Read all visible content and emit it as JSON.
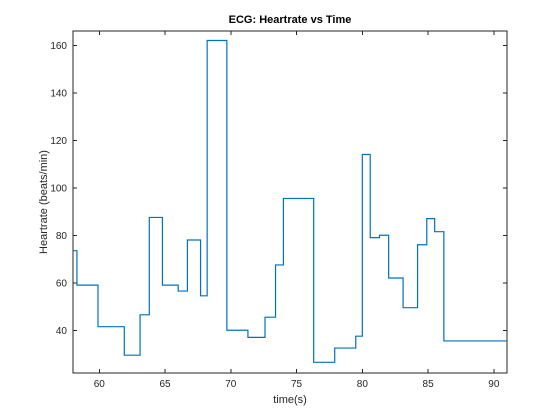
{
  "chart_data": {
    "type": "line",
    "step": true,
    "title": "ECG: Heartrate vs Time",
    "xlabel": "time(s)",
    "ylabel": "Heartrate (beats/min)",
    "xlim": [
      58,
      91
    ],
    "ylim": [
      22,
      166
    ],
    "xticks": [
      60,
      65,
      70,
      75,
      80,
      85,
      90
    ],
    "yticks": [
      40,
      60,
      80,
      100,
      120,
      140,
      160
    ],
    "grid": false,
    "box": true,
    "line_color": "#0072BD",
    "series": [
      {
        "x": [
          58.0,
          58.3,
          59.9,
          61.9,
          63.1,
          63.8,
          64.8,
          66.0,
          66.7,
          67.7,
          68.2,
          69.7,
          71.3,
          72.6,
          73.4,
          74.0,
          76.3,
          77.9,
          79.5,
          80.0,
          80.6,
          81.3,
          82.0,
          83.1,
          84.2,
          84.9,
          85.5,
          86.2,
          88.0,
          91.0
        ],
        "y": [
          73.5,
          59,
          41.5,
          29.5,
          46.5,
          87.5,
          59,
          56.5,
          78,
          54.5,
          162,
          40,
          37,
          45.5,
          67.5,
          95.5,
          26.5,
          32.5,
          37.5,
          114,
          79,
          80,
          62,
          49.5,
          76,
          87,
          81.5,
          35.5,
          35.5,
          35.5
        ]
      }
    ]
  }
}
